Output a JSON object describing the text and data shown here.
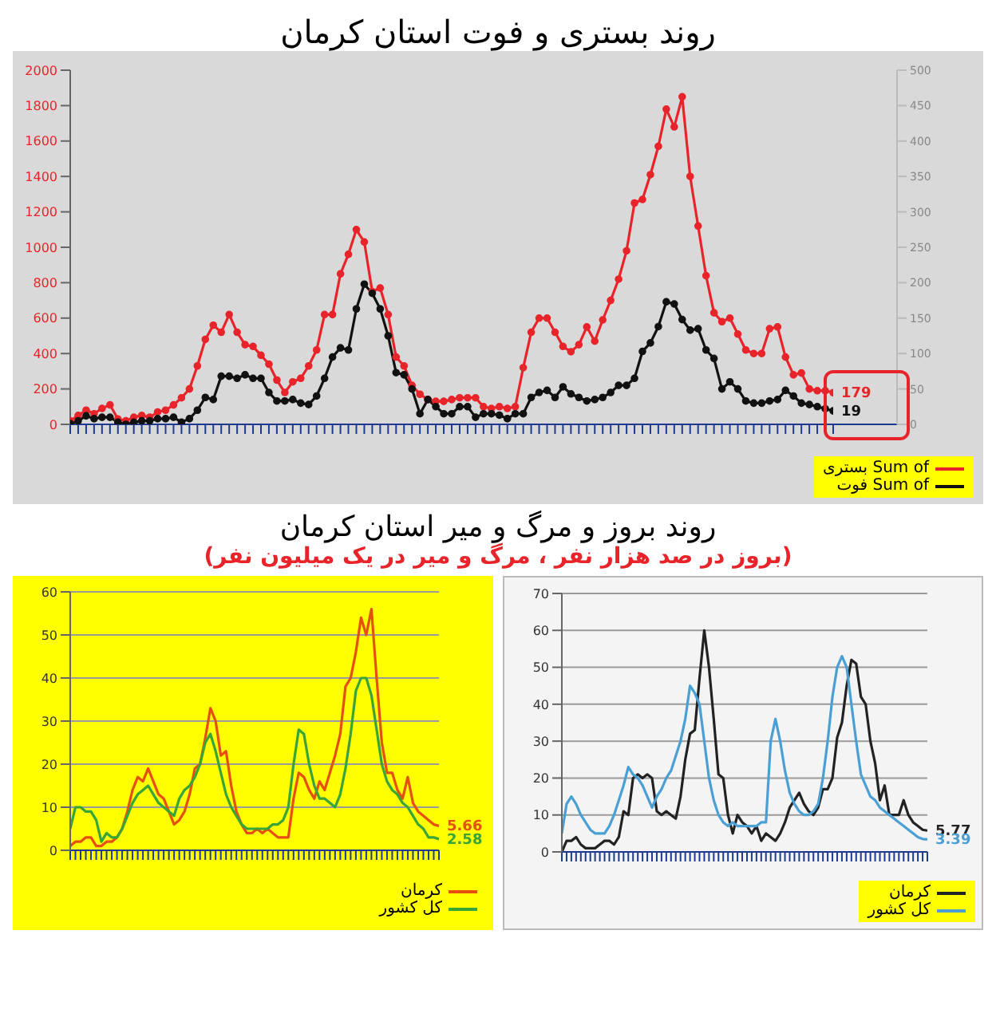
{
  "chart_data": [
    {
      "type": "line",
      "title": "روند بستری و فوت استان کرمان",
      "categories": [
        null,
        null,
        null,
        null,
        null,
        null,
        null,
        null,
        null,
        null,
        null,
        null,
        null,
        null,
        null,
        null,
        null,
        null,
        null,
        null,
        null,
        null,
        null,
        null,
        null,
        null,
        null,
        null,
        null,
        null,
        null,
        null,
        null,
        null,
        null,
        null,
        null,
        null,
        null,
        null,
        null,
        null,
        null,
        null,
        null,
        null,
        null,
        null,
        null,
        null,
        null,
        null,
        null,
        null,
        null,
        null,
        null,
        null,
        null,
        null,
        null,
        null,
        null,
        null,
        null,
        null,
        null,
        null,
        null,
        null,
        null,
        null,
        null,
        null,
        null,
        null,
        null,
        null,
        null,
        null,
        null,
        null,
        null,
        null,
        null,
        null,
        null,
        null,
        null,
        null,
        null,
        null,
        null,
        null,
        null,
        null,
        null
      ],
      "ylim": [
        0,
        2000
      ],
      "yticks": [
        0,
        200,
        400,
        600,
        800,
        1000,
        1200,
        1400,
        1600,
        1800,
        2000
      ],
      "y2lim": [
        0,
        500
      ],
      "y2ticks": [
        0,
        50,
        100,
        150,
        200,
        250,
        300,
        350,
        400,
        450,
        500
      ],
      "marker": "circle",
      "legend": "bottom right",
      "series": [
        {
          "name": "Sum of بستری",
          "color": "#e8242a",
          "values": [
            20,
            50,
            80,
            60,
            90,
            110,
            30,
            20,
            40,
            50,
            40,
            70,
            80,
            110,
            150,
            200,
            330,
            480,
            560,
            520,
            620,
            520,
            450,
            440,
            390,
            340,
            250,
            180,
            240,
            260,
            330,
            420,
            620,
            620,
            850,
            960,
            1100,
            1030,
            750,
            770,
            620,
            380,
            330,
            220,
            170,
            140,
            130,
            130,
            140,
            150,
            150,
            150,
            100,
            90,
            100,
            90,
            100,
            320,
            520,
            600,
            600,
            520,
            440,
            410,
            450,
            550,
            470,
            590,
            700,
            820,
            980,
            1250,
            1270,
            1410,
            1570,
            1780,
            1680,
            1850,
            1400,
            1120,
            840,
            630,
            580,
            600,
            510,
            420,
            400,
            400,
            540,
            550,
            380,
            280,
            290,
            200,
            190,
            190,
            179
          ],
          "value_labels": [
            null,
            null,
            null,
            null,
            null,
            null,
            null,
            null,
            null,
            null,
            null,
            null,
            null,
            null,
            null,
            null,
            null,
            null,
            null,
            null,
            null,
            null,
            null,
            null,
            null,
            null,
            null,
            null,
            null,
            null,
            null,
            null,
            null,
            null,
            null,
            null,
            null,
            null,
            null,
            null,
            null,
            null,
            null,
            null,
            null,
            null,
            null,
            null,
            null,
            null,
            null,
            null,
            null,
            null,
            null,
            null,
            null,
            null,
            null,
            null,
            null,
            null,
            null,
            null,
            null,
            null,
            null,
            null,
            null,
            null,
            null,
            null,
            null,
            null,
            null,
            null,
            null,
            null,
            null,
            null,
            null,
            null,
            null,
            null,
            null,
            null,
            null,
            null,
            null,
            null,
            null,
            null,
            null,
            null,
            null,
            null,
            "179"
          ]
        },
        {
          "name": "Sum of فوت",
          "color": "#111111",
          "axis": "y2",
          "values": [
            1,
            5,
            12,
            8,
            10,
            10,
            3,
            0,
            3,
            5,
            5,
            8,
            8,
            10,
            3,
            8,
            20,
            38,
            35,
            68,
            68,
            65,
            70,
            65,
            65,
            45,
            33,
            33,
            35,
            30,
            28,
            40,
            65,
            95,
            108,
            105,
            163,
            198,
            185,
            163,
            125,
            73,
            70,
            50,
            15,
            35,
            25,
            15,
            15,
            25,
            25,
            10,
            15,
            15,
            13,
            8,
            15,
            15,
            38,
            45,
            48,
            38,
            53,
            43,
            38,
            33,
            35,
            38,
            45,
            55,
            55,
            65,
            103,
            115,
            138,
            173,
            170,
            148,
            133,
            135,
            105,
            93,
            50,
            60,
            50,
            33,
            30,
            30,
            33,
            35,
            48,
            40,
            30,
            28,
            25,
            22,
            19
          ],
          "value_labels": [
            null,
            null,
            null,
            null,
            null,
            null,
            null,
            null,
            null,
            null,
            null,
            null,
            null,
            null,
            null,
            null,
            null,
            null,
            null,
            null,
            null,
            null,
            null,
            null,
            null,
            null,
            null,
            null,
            null,
            null,
            null,
            null,
            null,
            null,
            null,
            null,
            null,
            null,
            null,
            null,
            null,
            null,
            null,
            null,
            null,
            null,
            null,
            null,
            null,
            null,
            null,
            null,
            null,
            null,
            null,
            null,
            null,
            null,
            null,
            null,
            null,
            null,
            null,
            null,
            null,
            null,
            null,
            null,
            null,
            null,
            null,
            null,
            null,
            null,
            null,
            null,
            null,
            null,
            null,
            null,
            null,
            null,
            null,
            null,
            null,
            null,
            null,
            null,
            null,
            null,
            null,
            null,
            null,
            null,
            null,
            null,
            "19"
          ]
        }
      ]
    },
    {
      "type": "line",
      "title": "روند بروز و مرگ و میر استان کرمان",
      "subtitle": "(بروز در صد هزار نفر ، مرگ و میر در یک میلیون نفر)",
      "categories": [
        null,
        null,
        null,
        null,
        null,
        null,
        null,
        null,
        null,
        null,
        null,
        null,
        null,
        null,
        null,
        null,
        null,
        null,
        null,
        null,
        null,
        null,
        null,
        null,
        null,
        null,
        null,
        null,
        null,
        null,
        null,
        null,
        null,
        null,
        null,
        null,
        null,
        null,
        null,
        null,
        null,
        null,
        null,
        null,
        null,
        null,
        null,
        null,
        null,
        null,
        null,
        null,
        null,
        null,
        null,
        null,
        null,
        null,
        null,
        null,
        null,
        null,
        null,
        null,
        null,
        null,
        null,
        null,
        null,
        null,
        null,
        null
      ],
      "ylim": [
        0,
        60
      ],
      "yticks": [
        0,
        10,
        20,
        30,
        40,
        50,
        60
      ],
      "grid": "y",
      "legend": "bottom right",
      "series": [
        {
          "name": "کرمان",
          "color": "#e5500f",
          "values": [
            1,
            2,
            2,
            3,
            3,
            1,
            1,
            2,
            2,
            3,
            5,
            9,
            14,
            17,
            16,
            19,
            16,
            13,
            12,
            9,
            6,
            7,
            9,
            13,
            19,
            20,
            26,
            33,
            30,
            22,
            23,
            15,
            9,
            6,
            4,
            4,
            5,
            4,
            5,
            4,
            3,
            3,
            3,
            12,
            18,
            17,
            14,
            12,
            16,
            14,
            18,
            22,
            27,
            38,
            40,
            46,
            54,
            50,
            56,
            40,
            25,
            18,
            18,
            14,
            12,
            17,
            11,
            9,
            8,
            7,
            6,
            5.66
          ],
          "value_labels": [
            null,
            null,
            null,
            null,
            null,
            null,
            null,
            null,
            null,
            null,
            null,
            null,
            null,
            null,
            null,
            null,
            null,
            null,
            null,
            null,
            null,
            null,
            null,
            null,
            null,
            null,
            null,
            null,
            null,
            null,
            null,
            null,
            null,
            null,
            null,
            null,
            null,
            null,
            null,
            null,
            null,
            null,
            null,
            null,
            null,
            null,
            null,
            null,
            null,
            null,
            null,
            null,
            null,
            null,
            null,
            null,
            null,
            null,
            null,
            null,
            null,
            null,
            null,
            null,
            null,
            null,
            null,
            null,
            null,
            null,
            null,
            "5.66"
          ]
        },
        {
          "name": "کل کشور",
          "color": "#3aa537",
          "values": [
            5,
            10,
            10,
            9,
            9,
            7,
            2,
            4,
            3,
            3,
            5,
            8,
            11,
            13,
            14,
            15,
            13,
            11,
            10,
            9,
            8,
            12,
            14,
            15,
            17,
            20,
            25,
            27,
            23,
            18,
            13,
            10,
            8,
            6,
            5,
            5,
            5,
            5,
            5,
            6,
            6,
            7,
            10,
            20,
            28,
            27,
            20,
            15,
            12,
            12,
            11,
            10,
            13,
            19,
            27,
            37,
            40,
            40,
            36,
            28,
            20,
            16,
            14,
            13,
            11,
            10,
            8,
            6,
            5,
            3,
            3,
            2.58
          ],
          "value_labels": [
            null,
            null,
            null,
            null,
            null,
            null,
            null,
            null,
            null,
            null,
            null,
            null,
            null,
            null,
            null,
            null,
            null,
            null,
            null,
            null,
            null,
            null,
            null,
            null,
            null,
            null,
            null,
            null,
            null,
            null,
            null,
            null,
            null,
            null,
            null,
            null,
            null,
            null,
            null,
            null,
            null,
            null,
            null,
            null,
            null,
            null,
            null,
            null,
            null,
            null,
            null,
            null,
            null,
            null,
            null,
            null,
            null,
            null,
            null,
            null,
            null,
            null,
            null,
            null,
            null,
            null,
            null,
            null,
            null,
            null,
            null,
            "2.58"
          ]
        }
      ]
    },
    {
      "type": "line",
      "categories": [
        null,
        null,
        null,
        null,
        null,
        null,
        null,
        null,
        null,
        null,
        null,
        null,
        null,
        null,
        null,
        null,
        null,
        null,
        null,
        null,
        null,
        null,
        null,
        null,
        null,
        null,
        null,
        null,
        null,
        null,
        null,
        null,
        null,
        null,
        null,
        null,
        null,
        null,
        null,
        null,
        null,
        null,
        null,
        null,
        null,
        null,
        null,
        null,
        null,
        null,
        null,
        null,
        null,
        null,
        null,
        null,
        null,
        null,
        null,
        null,
        null,
        null,
        null,
        null,
        null,
        null,
        null,
        null,
        null,
        null,
        null,
        null,
        null,
        null,
        null,
        null,
        null,
        null
      ],
      "ylim": [
        0,
        70
      ],
      "yticks": [
        0,
        10,
        20,
        30,
        40,
        50,
        60,
        70
      ],
      "grid": "y",
      "legend": "bottom right",
      "series": [
        {
          "name": "کرمان",
          "color": "#222222",
          "values": [
            0,
            3,
            3,
            4,
            2,
            1,
            1,
            1,
            2,
            3,
            3,
            2,
            4,
            11,
            10,
            20,
            21,
            20,
            21,
            20,
            11,
            10,
            11,
            10,
            9,
            15,
            25,
            32,
            33,
            47,
            60,
            50,
            36,
            21,
            20,
            10,
            5,
            10,
            8,
            7,
            5,
            7,
            3,
            5,
            4,
            3,
            5,
            8,
            12,
            14,
            16,
            13,
            11,
            10,
            12,
            17,
            17,
            20,
            31,
            35,
            45,
            52,
            51,
            42,
            40,
            30,
            24,
            14,
            18,
            10,
            10,
            10,
            14,
            10,
            8,
            7,
            6,
            5.77
          ],
          "value_labels": [
            null,
            null,
            null,
            null,
            null,
            null,
            null,
            null,
            null,
            null,
            null,
            null,
            null,
            null,
            null,
            null,
            null,
            null,
            null,
            null,
            null,
            null,
            null,
            null,
            null,
            null,
            null,
            null,
            null,
            null,
            null,
            null,
            null,
            null,
            null,
            null,
            null,
            null,
            null,
            null,
            null,
            null,
            null,
            null,
            null,
            null,
            null,
            null,
            null,
            null,
            null,
            null,
            null,
            null,
            null,
            null,
            null,
            null,
            null,
            null,
            null,
            null,
            null,
            null,
            null,
            null,
            null,
            null,
            null,
            null,
            null,
            null,
            null,
            null,
            null,
            null,
            null,
            "5.77"
          ]
        },
        {
          "name": "کل کشور",
          "color": "#4a9fd4",
          "values": [
            5,
            13,
            15,
            13,
            10,
            8,
            6,
            5,
            5,
            5,
            7,
            10,
            14,
            18,
            23,
            21,
            20,
            18,
            15,
            12,
            15,
            17,
            20,
            22,
            26,
            30,
            36,
            45,
            43,
            40,
            30,
            20,
            14,
            10,
            8,
            7,
            8,
            7,
            7,
            7,
            7,
            7,
            8,
            8,
            30,
            36,
            30,
            22,
            16,
            13,
            11,
            10,
            10,
            11,
            13,
            20,
            30,
            42,
            50,
            53,
            50,
            40,
            30,
            21,
            18,
            15,
            14,
            12,
            11,
            10,
            9,
            8,
            7,
            6,
            5,
            4,
            3.5,
            3.39
          ],
          "value_labels": [
            null,
            null,
            null,
            null,
            null,
            null,
            null,
            null,
            null,
            null,
            null,
            null,
            null,
            null,
            null,
            null,
            null,
            null,
            null,
            null,
            null,
            null,
            null,
            null,
            null,
            null,
            null,
            null,
            null,
            null,
            null,
            null,
            null,
            null,
            null,
            null,
            null,
            null,
            null,
            null,
            null,
            null,
            null,
            null,
            null,
            null,
            null,
            null,
            null,
            null,
            null,
            null,
            null,
            null,
            null,
            null,
            null,
            null,
            null,
            null,
            null,
            null,
            null,
            null,
            null,
            null,
            null,
            null,
            null,
            null,
            null,
            null,
            null,
            null,
            null,
            null,
            null,
            "3.39"
          ]
        }
      ]
    }
  ]
}
